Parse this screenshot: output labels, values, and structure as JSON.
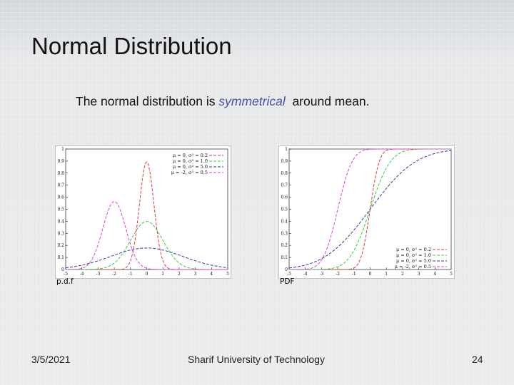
{
  "slide": {
    "title": "Normal Distribution",
    "subtitle_pre": "The normal distribution is ",
    "subtitle_em": "symmetrical",
    "subtitle_post": "  around mean."
  },
  "captions": {
    "left": "p.d.f",
    "right": "PDF"
  },
  "footer": {
    "date": "3/5/2021",
    "organization": "Sharif University of Technology",
    "page": "24"
  },
  "colors": {
    "title": "#111111",
    "emphasis": "#4a4fa8",
    "series_red": "#e03b3b",
    "series_green": "#3ccc3c",
    "series_blue": "#3a3a99",
    "series_magenta": "#e040e0"
  },
  "chart_data": [
    {
      "type": "line",
      "title": "",
      "xlabel": "",
      "ylabel": "",
      "xlim": [
        -5,
        5
      ],
      "ylim": [
        0,
        1
      ],
      "xticks": [
        "-5",
        "-4",
        "-3",
        "-2",
        "-1",
        "0",
        "1",
        "2",
        "3",
        "4",
        "5"
      ],
      "yticks": [
        "0",
        "0.1",
        "0.2",
        "0.3",
        "0.4",
        "0.5",
        "0.6",
        "0.7",
        "0.8",
        "0.9",
        "1"
      ],
      "legend_position": "top-right",
      "series": [
        {
          "name": "μ = 0, σ² = 0.2",
          "mu": 0,
          "var": 0.2,
          "color": "#e03b3b",
          "function": "pdf"
        },
        {
          "name": "μ = 0, σ² = 1.0",
          "mu": 0,
          "var": 1.0,
          "color": "#3ccc3c",
          "function": "pdf"
        },
        {
          "name": "μ = 0, σ² = 5.0",
          "mu": 0,
          "var": 5.0,
          "color": "#3a3a99",
          "function": "pdf"
        },
        {
          "name": "μ = -2, σ² = 0.5",
          "mu": -2,
          "var": 0.5,
          "color": "#e040e0",
          "function": "pdf"
        }
      ]
    },
    {
      "type": "line",
      "title": "",
      "xlabel": "",
      "ylabel": "",
      "xlim": [
        -5,
        5
      ],
      "ylim": [
        0,
        1
      ],
      "xticks": [
        "-5",
        "-4",
        "-3",
        "-2",
        "-1",
        "0",
        "1",
        "2",
        "3",
        "4",
        "5"
      ],
      "yticks": [
        "0",
        "0.1",
        "0.2",
        "0.3",
        "0.4",
        "0.5",
        "0.6",
        "0.7",
        "0.8",
        "0.9",
        "1"
      ],
      "legend_position": "bottom-right",
      "series": [
        {
          "name": "μ = 0, σ² = 0.2",
          "mu": 0,
          "var": 0.2,
          "color": "#e03b3b",
          "function": "cdf"
        },
        {
          "name": "μ = 0, σ² = 1.0",
          "mu": 0,
          "var": 1.0,
          "color": "#3ccc3c",
          "function": "cdf"
        },
        {
          "name": "μ = 0, σ² = 5.0",
          "mu": 0,
          "var": 5.0,
          "color": "#3a3a99",
          "function": "cdf"
        },
        {
          "name": "μ = -2, σ² = 0.5",
          "mu": -2,
          "var": 0.5,
          "color": "#e040e0",
          "function": "cdf"
        }
      ]
    }
  ]
}
